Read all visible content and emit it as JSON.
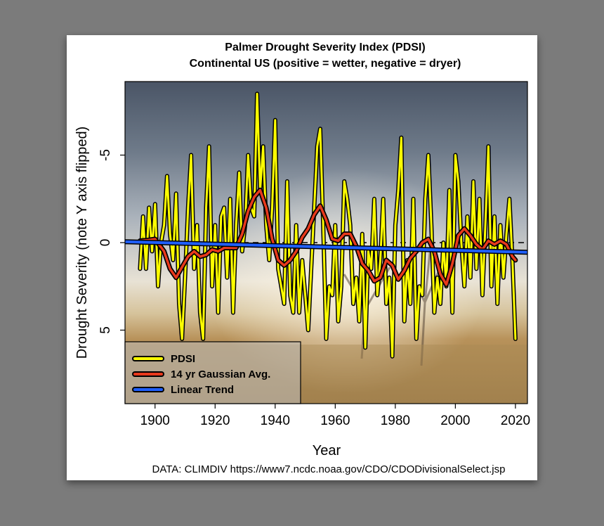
{
  "chart_data": {
    "type": "line",
    "title": "Palmer Drought Severity Index (PDSI)",
    "subtitle": "Continental US (positive = wetter, negative = dryer)",
    "xlabel": "Year",
    "ylabel": "Drought Severity (note Y axis flipped)",
    "xlim": [
      1890,
      2024
    ],
    "ylim": [
      -9.2,
      9.2
    ],
    "y_flipped": true,
    "x_ticks": [
      1900,
      1920,
      1940,
      1960,
      1980,
      2000,
      2020
    ],
    "y_ticks": [
      -5,
      0,
      5
    ],
    "y_tick_labels": [
      "-5",
      "0",
      "5"
    ],
    "reference_line": {
      "y": 0,
      "style": "dashed"
    },
    "legend_position": "bottom-left",
    "series": [
      {
        "name": "PDSI",
        "color": "#ffff00",
        "points": [
          [
            1895,
            1.5
          ],
          [
            1896,
            -1.5
          ],
          [
            1897,
            1.5
          ],
          [
            1898,
            -2.0
          ],
          [
            1899,
            0.5
          ],
          [
            1900,
            -2.2
          ],
          [
            1901,
            2.5
          ],
          [
            1902,
            0.0
          ],
          [
            1903,
            -1.0
          ],
          [
            1904,
            -3.8
          ],
          [
            1905,
            -0.5
          ],
          [
            1906,
            1.0
          ],
          [
            1907,
            -2.8
          ],
          [
            1908,
            3.5
          ],
          [
            1909,
            5.5
          ],
          [
            1910,
            2.0
          ],
          [
            1911,
            -2.0
          ],
          [
            1912,
            -5.0
          ],
          [
            1913,
            1.5
          ],
          [
            1914,
            -1.0
          ],
          [
            1915,
            4.0
          ],
          [
            1916,
            5.5
          ],
          [
            1917,
            -2.0
          ],
          [
            1918,
            -5.5
          ],
          [
            1919,
            2.5
          ],
          [
            1920,
            -1.0
          ],
          [
            1921,
            4.0
          ],
          [
            1922,
            -1.5
          ],
          [
            1923,
            -2.0
          ],
          [
            1924,
            2.0
          ],
          [
            1925,
            -2.5
          ],
          [
            1926,
            4.0
          ],
          [
            1927,
            -1.0
          ],
          [
            1928,
            -4.0
          ],
          [
            1929,
            0.5
          ],
          [
            1930,
            -1.0
          ],
          [
            1931,
            -5.0
          ],
          [
            1932,
            -2.0
          ],
          [
            1933,
            -1.5
          ],
          [
            1934,
            -8.5
          ],
          [
            1935,
            -3.0
          ],
          [
            1936,
            -5.5
          ],
          [
            1937,
            -1.0
          ],
          [
            1938,
            1.0
          ],
          [
            1939,
            -2.0
          ],
          [
            1940,
            -7.0
          ],
          [
            1941,
            1.5
          ],
          [
            1942,
            2.5
          ],
          [
            1943,
            3.5
          ],
          [
            1944,
            -3.5
          ],
          [
            1945,
            3.0
          ],
          [
            1946,
            4.0
          ],
          [
            1947,
            -1.0
          ],
          [
            1948,
            4.0
          ],
          [
            1949,
            1.0
          ],
          [
            1950,
            3.0
          ],
          [
            1951,
            5.0
          ],
          [
            1952,
            1.5
          ],
          [
            1953,
            -2.0
          ],
          [
            1954,
            -5.5
          ],
          [
            1955,
            -6.5
          ],
          [
            1956,
            -1.0
          ],
          [
            1957,
            5.5
          ],
          [
            1958,
            2.5
          ],
          [
            1959,
            3.0
          ],
          [
            1960,
            -1.0
          ],
          [
            1961,
            4.5
          ],
          [
            1962,
            2.5
          ],
          [
            1963,
            -3.5
          ],
          [
            1964,
            -2.5
          ],
          [
            1965,
            -1.0
          ],
          [
            1966,
            3.5
          ],
          [
            1967,
            2.0
          ],
          [
            1968,
            4.5
          ],
          [
            1969,
            -0.5
          ],
          [
            1970,
            6.0
          ],
          [
            1971,
            0.5
          ],
          [
            1972,
            1.5
          ],
          [
            1973,
            -2.5
          ],
          [
            1974,
            3.0
          ],
          [
            1975,
            1.0
          ],
          [
            1976,
            -2.5
          ],
          [
            1977,
            3.5
          ],
          [
            1978,
            2.0
          ],
          [
            1979,
            6.5
          ],
          [
            1980,
            -1.0
          ],
          [
            1981,
            -3.0
          ],
          [
            1982,
            -6.0
          ],
          [
            1983,
            4.5
          ],
          [
            1984,
            1.0
          ],
          [
            1985,
            3.5
          ],
          [
            1986,
            -2.5
          ],
          [
            1987,
            5.5
          ],
          [
            1988,
            2.5
          ],
          [
            1989,
            3.0
          ],
          [
            1990,
            -2.5
          ],
          [
            1991,
            -5.0
          ],
          [
            1992,
            -1.0
          ],
          [
            1993,
            4.0
          ],
          [
            1994,
            2.0
          ],
          [
            1995,
            3.5
          ],
          [
            1996,
            0.0
          ],
          [
            1997,
            2.5
          ],
          [
            1998,
            -3.0
          ],
          [
            1999,
            4.0
          ],
          [
            2000,
            -5.0
          ],
          [
            2001,
            -3.5
          ],
          [
            2002,
            0.0
          ],
          [
            2003,
            2.5
          ],
          [
            2004,
            -1.5
          ],
          [
            2005,
            2.0
          ],
          [
            2006,
            -3.5
          ],
          [
            2007,
            1.5
          ],
          [
            2008,
            -2.5
          ],
          [
            2009,
            3.0
          ],
          [
            2010,
            -1.0
          ],
          [
            2011,
            -5.5
          ],
          [
            2012,
            2.5
          ],
          [
            2013,
            -1.5
          ],
          [
            2014,
            3.5
          ],
          [
            2015,
            -1.0
          ],
          [
            2016,
            2.0
          ],
          [
            2017,
            -0.5
          ],
          [
            2018,
            -2.5
          ],
          [
            2019,
            1.0
          ],
          [
            2020,
            5.5
          ]
        ]
      },
      {
        "name": "14 yr Gaussian Avg.",
        "color": "#e8391c",
        "points": [
          [
            1895,
            -0.1
          ],
          [
            1898,
            -0.15
          ],
          [
            1900,
            -0.2
          ],
          [
            1903,
            0.5
          ],
          [
            1905,
            1.5
          ],
          [
            1907,
            2.0
          ],
          [
            1909,
            1.4
          ],
          [
            1911,
            0.8
          ],
          [
            1913,
            0.5
          ],
          [
            1915,
            0.8
          ],
          [
            1917,
            0.7
          ],
          [
            1919,
            0.4
          ],
          [
            1921,
            0.5
          ],
          [
            1923,
            0.3
          ],
          [
            1925,
            0.3
          ],
          [
            1927,
            0.3
          ],
          [
            1929,
            -0.5
          ],
          [
            1931,
            -1.8
          ],
          [
            1933,
            -2.6
          ],
          [
            1935,
            -3.0
          ],
          [
            1937,
            -2.0
          ],
          [
            1939,
            -0.2
          ],
          [
            1941,
            1.0
          ],
          [
            1943,
            1.3
          ],
          [
            1945,
            1.0
          ],
          [
            1947,
            0.5
          ],
          [
            1949,
            -0.3
          ],
          [
            1951,
            -0.8
          ],
          [
            1953,
            -1.6
          ],
          [
            1955,
            -2.1
          ],
          [
            1957,
            -1.3
          ],
          [
            1959,
            -0.2
          ],
          [
            1961,
            -0.1
          ],
          [
            1963,
            -0.5
          ],
          [
            1965,
            -0.5
          ],
          [
            1967,
            0.2
          ],
          [
            1969,
            1.2
          ],
          [
            1971,
            1.6
          ],
          [
            1973,
            2.2
          ],
          [
            1975,
            2.0
          ],
          [
            1977,
            1.0
          ],
          [
            1979,
            1.3
          ],
          [
            1981,
            2.1
          ],
          [
            1983,
            1.6
          ],
          [
            1985,
            0.9
          ],
          [
            1987,
            0.5
          ],
          [
            1989,
            0.0
          ],
          [
            1991,
            -0.2
          ],
          [
            1993,
            0.5
          ],
          [
            1995,
            1.8
          ],
          [
            1997,
            2.4
          ],
          [
            1999,
            1.2
          ],
          [
            2001,
            -0.4
          ],
          [
            2003,
            -0.8
          ],
          [
            2005,
            -0.4
          ],
          [
            2007,
            0.1
          ],
          [
            2009,
            0.4
          ],
          [
            2011,
            -0.1
          ],
          [
            2013,
            0.1
          ],
          [
            2015,
            -0.1
          ],
          [
            2017,
            0.1
          ],
          [
            2019,
            0.8
          ],
          [
            2020,
            1.0
          ]
        ]
      },
      {
        "name": "Linear Trend",
        "color": "#1f5fff",
        "points": [
          [
            1890,
            -0.05
          ],
          [
            2024,
            0.55
          ]
        ]
      }
    ],
    "source_note": "DATA: CLIMDIV https://www7.ncdc.noaa.gov/CDO/CDODivisionalSelect.jsp"
  }
}
